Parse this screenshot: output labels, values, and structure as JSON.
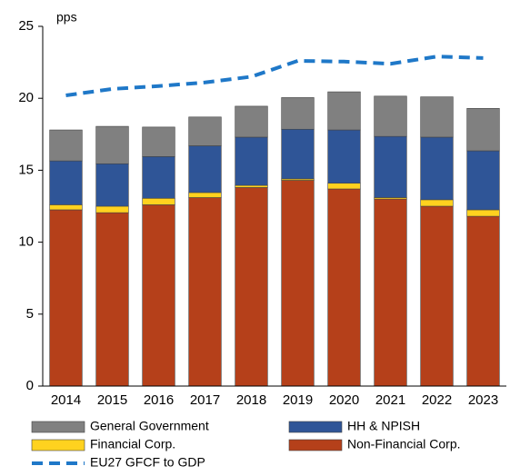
{
  "chart_data": {
    "type": "stacked_bar_line",
    "y_unit": "pps",
    "categories": [
      "2014",
      "2015",
      "2016",
      "2017",
      "2018",
      "2019",
      "2020",
      "2021",
      "2022",
      "2023"
    ],
    "series": [
      {
        "name": "Non-Financial Corp.",
        "color": "#b5401a",
        "values": [
          12.25,
          12.05,
          12.6,
          13.1,
          13.8,
          14.3,
          13.7,
          13.0,
          12.5,
          11.8
        ]
      },
      {
        "name": "Financial Corp.",
        "color": "#ffd21f",
        "values": [
          0.35,
          0.45,
          0.45,
          0.35,
          0.15,
          0.1,
          0.4,
          0.1,
          0.45,
          0.45
        ]
      },
      {
        "name": "HH & NPISH",
        "color": "#2f5597",
        "values": [
          3.05,
          2.95,
          2.9,
          3.25,
          3.35,
          3.45,
          3.7,
          4.25,
          4.35,
          4.1
        ]
      },
      {
        "name": "General Government",
        "color": "#808080",
        "values": [
          2.15,
          2.6,
          2.05,
          2.0,
          2.15,
          2.2,
          2.65,
          2.8,
          2.8,
          2.95
        ]
      },
      {
        "name": "EU27 GFCF to GDP",
        "color": "#1f78c8",
        "type": "line",
        "values": [
          20.2,
          20.65,
          20.85,
          21.1,
          21.5,
          22.6,
          22.55,
          22.4,
          22.9,
          22.8
        ]
      }
    ],
    "ylim": [
      0,
      25
    ],
    "yticks": [
      0,
      5,
      10,
      15,
      20,
      25
    ],
    "grid": false
  }
}
